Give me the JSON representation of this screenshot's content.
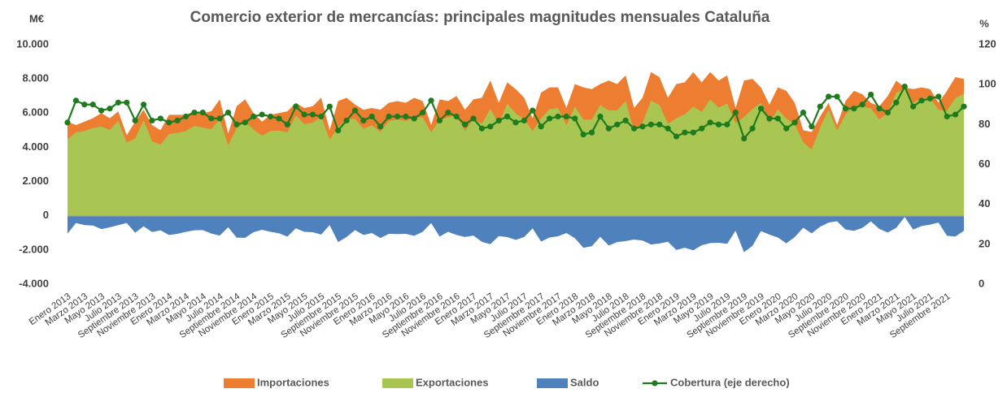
{
  "chart_data": {
    "type": "area",
    "title": "Comercio exterior de mercancías: principales magnitudes mensuales Cataluña",
    "y_label": "M€",
    "y2_label": "%",
    "categories": [
      "Enero 2013",
      null,
      "Marzo 2013",
      null,
      "Mayo 2013",
      null,
      "Julio 2013",
      null,
      "Septiembre 2013",
      null,
      "Noviembre 2013",
      null,
      "Enero 2014",
      null,
      "Marzo 2014",
      null,
      "Mayo 2014",
      null,
      "Julio 2014",
      null,
      "Septiembre 2014",
      null,
      "Noviembre 2014",
      null,
      "Enero 2015",
      null,
      "Marzo 2015",
      null,
      "Mayo 2015",
      null,
      "Julio 2015",
      null,
      "Septiembre 2015",
      null,
      "Noviembre 2015",
      null,
      "Enero 2016",
      null,
      "Marzo 2016",
      null,
      "Mayo 2016",
      null,
      "Julio 2016",
      null,
      "Septiembre 2016",
      null,
      "Noviembre 2016",
      null,
      "Enero 2017",
      null,
      "Marzo 2017",
      null,
      "Mayo 2017",
      null,
      "Julio 2017",
      null,
      "Septiembre 2017",
      null,
      "Noviembre 2017",
      null,
      "Enero 2018",
      null,
      "Marzo 2018",
      null,
      "Mayo 2018",
      null,
      "Julio 2018",
      null,
      "Septiembre 2018",
      null,
      "Noviembre 2018",
      null,
      "Enero 2019",
      null,
      "Marzo 2019",
      null,
      "Mayo 2019",
      null,
      "Julio 2019",
      null,
      "Septiembre 2019",
      null,
      "Noviembre 2019",
      null,
      "Enero 2020",
      null,
      "Marzo 2020",
      null,
      "Mayo 2020",
      null,
      "Julio 2020",
      null,
      "Septiembre 2020",
      null,
      "Noviembre 2020",
      null,
      "Enero 2021",
      null,
      "Marzo 2021",
      null,
      "Mayo 2021",
      null,
      "Julio 2021",
      null,
      "Septiembre 2021",
      null,
      null
    ],
    "series": [
      {
        "name": "Importaciones",
        "color": "#ed7d31",
        "values": [
          5500,
          5300,
          5500,
          5700,
          6000,
          5700,
          6100,
          4700,
          5500,
          6200,
          5300,
          5000,
          5900,
          5900,
          5900,
          6100,
          6000,
          6100,
          6800,
          4800,
          6400,
          6800,
          6000,
          5500,
          5900,
          6000,
          6100,
          6600,
          6300,
          6400,
          6900,
          5000,
          6700,
          6900,
          6500,
          6200,
          6300,
          6200,
          6600,
          6700,
          6600,
          6900,
          6700,
          5300,
          6800,
          6700,
          7000,
          6200,
          6800,
          6900,
          7900,
          6600,
          7800,
          7400,
          6900,
          5700,
          7200,
          7500,
          7500,
          6300,
          7700,
          7500,
          7400,
          7700,
          7900,
          7700,
          8200,
          6300,
          6900,
          8400,
          8100,
          6900,
          7700,
          7800,
          8400,
          7800,
          8400,
          7900,
          8200,
          6300,
          7900,
          8000,
          7500,
          6500,
          7500,
          7300,
          6600,
          5000,
          4900,
          5800,
          6600,
          5300,
          6700,
          7300,
          7100,
          6600,
          6400,
          7000,
          7900,
          7500,
          7400,
          7500,
          7400,
          6600,
          7300,
          8100,
          8000
        ]
      },
      {
        "name": "Exportaciones",
        "color": "#a9c653",
        "values": [
          4460,
          4880,
          4950,
          5130,
          5220,
          5020,
          5550,
          4280,
          4510,
          5580,
          4350,
          4150,
          4780,
          4840,
          4960,
          5250,
          5160,
          5060,
          5640,
          4130,
          5120,
          5510,
          5040,
          4680,
          4960,
          4980,
          4880,
          5870,
          5360,
          5440,
          5800,
          4450,
          5160,
          5660,
          5660,
          5080,
          5290,
          4900,
          5540,
          5630,
          5540,
          5730,
          5760,
          4880,
          5580,
          5760,
          5880,
          4960,
          5640,
          5380,
          6240,
          5410,
          6550,
          5990,
          5660,
          4960,
          5690,
          6230,
          6300,
          5290,
          6390,
          5630,
          5620,
          6470,
          6160,
          6160,
          6720,
          4910,
          5450,
          6720,
          6480,
          5380,
          5700,
          5930,
          6380,
          6080,
          6800,
          6320,
          6560,
          5420,
          5770,
          6240,
          6600,
          5400,
          6230,
          5690,
          5350,
          4300,
          3870,
          5160,
          6200,
          4980,
          5900,
          6420,
          6390,
          6270,
          5630,
          6020,
          7190,
          7430,
          6590,
          6900,
          6880,
          6200,
          6130,
          6890,
          7120
        ]
      },
      {
        "name": "Saldo",
        "color": "#4f81bd",
        "values": [
          -1040,
          -420,
          -550,
          -570,
          -780,
          -680,
          -550,
          -420,
          -990,
          -620,
          -950,
          -850,
          -1120,
          -1060,
          -940,
          -850,
          -840,
          -1040,
          -1160,
          -670,
          -1280,
          -1290,
          -960,
          -820,
          -940,
          -1020,
          -1220,
          -730,
          -940,
          -960,
          -1100,
          -550,
          -1540,
          -1240,
          -840,
          -1120,
          -1010,
          -1300,
          -1060,
          -1070,
          -1060,
          -1170,
          -940,
          -420,
          -1220,
          -940,
          -1120,
          -1240,
          -1160,
          -1520,
          -1660,
          -1190,
          -1250,
          -1410,
          -1240,
          -740,
          -1510,
          -1270,
          -1200,
          -1010,
          -1310,
          -1870,
          -1780,
          -1230,
          -1740,
          -1540,
          -1480,
          -1390,
          -1450,
          -1680,
          -1620,
          -1520,
          -2000,
          -1870,
          -2020,
          -1720,
          -1600,
          -1580,
          -1640,
          -880,
          -2130,
          -1760,
          -900,
          -1100,
          -1270,
          -1610,
          -1250,
          -700,
          -1030,
          -640,
          -400,
          -320,
          -800,
          -880,
          -710,
          -330,
          -770,
          -980,
          -710,
          -70,
          -810,
          -600,
          -520,
          -400,
          -1170,
          -1210,
          -880
        ]
      },
      {
        "name": "Cobertura (eje derecho)",
        "color": "#1e7b1e",
        "axis": "y2",
        "values": [
          81,
          92,
          90,
          90,
          87,
          88,
          91,
          91,
          82,
          90,
          82,
          83,
          81,
          82,
          84,
          86,
          86,
          83,
          83,
          86,
          80,
          81,
          84,
          85,
          84,
          83,
          80,
          89,
          85,
          85,
          84,
          89,
          77,
          82,
          87,
          82,
          84,
          79,
          84,
          84,
          84,
          83,
          86,
          92,
          82,
          86,
          84,
          80,
          83,
          78,
          79,
          82,
          84,
          81,
          82,
          87,
          79,
          83,
          84,
          84,
          83,
          75,
          76,
          84,
          78,
          80,
          82,
          78,
          79,
          80,
          80,
          78,
          74,
          76,
          76,
          78,
          81,
          80,
          80,
          86,
          73,
          78,
          88,
          83,
          83,
          78,
          81,
          86,
          79,
          89,
          94,
          94,
          88,
          88,
          90,
          95,
          88,
          86,
          91,
          99,
          89,
          92,
          93,
          94,
          84,
          85,
          89
        ]
      }
    ],
    "ylim": [
      -4000,
      10000
    ],
    "yticks": [
      {
        "value": -4000,
        "label": "-4.000"
      },
      {
        "value": -2000,
        "label": "-2.000"
      },
      0,
      {
        "value": 2000,
        "label": "2.000"
      },
      {
        "value": 4000,
        "label": "4.000"
      },
      {
        "value": 6000,
        "label": "6.000"
      },
      {
        "value": 8000,
        "label": "8.000"
      },
      {
        "value": 10000,
        "label": "10.000"
      }
    ],
    "y2lim": [
      0,
      120
    ],
    "y2ticks": [
      0,
      20,
      40,
      60,
      80,
      100,
      120
    ],
    "legend": "bottom",
    "grid": false
  }
}
